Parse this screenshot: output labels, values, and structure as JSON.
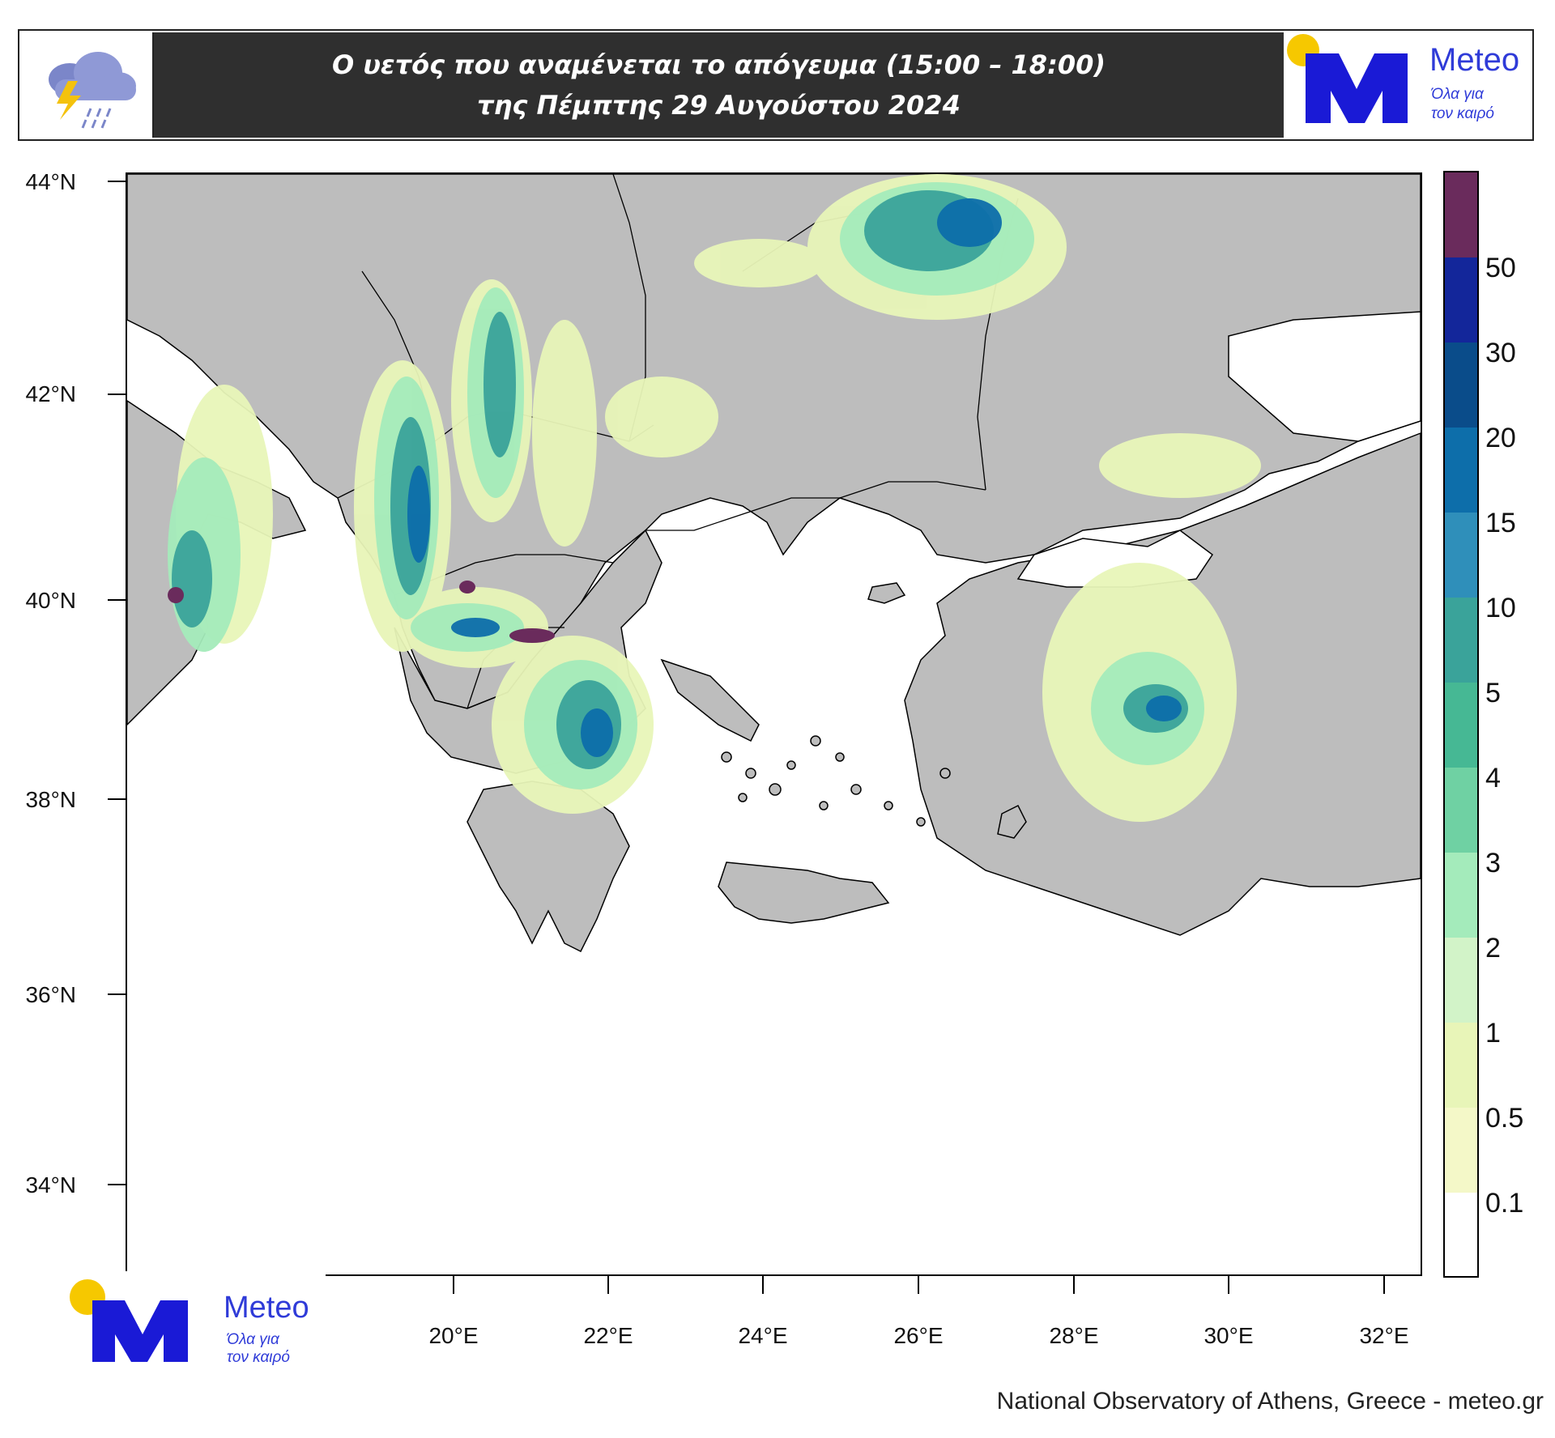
{
  "header": {
    "title_line1": "Ο υετός που αναμένεται το απόγευμα (15:00 – 18:00)",
    "title_line2": "της Πέμπτης 29 Αυγούστου 2024",
    "left_icon": "storm-cloud-icon",
    "logo": {
      "name": "Meteo",
      "tagline_line1": "Όλα για",
      "tagline_line2": "τον καιρό",
      "accent_color": "#1a1ad6",
      "sun_color": "#f6c800"
    }
  },
  "map": {
    "projection": "lat-lon",
    "lat_range": [
      33,
      44
    ],
    "lon_range": [
      18,
      32.5
    ],
    "lat_ticks": [
      "44°N",
      "42°N",
      "40°N",
      "38°N",
      "36°N",
      "34°N"
    ],
    "lon_ticks": [
      "20°E",
      "22°E",
      "24°E",
      "26°E",
      "28°E",
      "30°E",
      "32°E"
    ],
    "land_color": "#bdbdbd",
    "sea_color": "#ffffff"
  },
  "colorbar": {
    "levels": [
      "0.1",
      "0.5",
      "1",
      "2",
      "3",
      "4",
      "5",
      "10",
      "15",
      "20",
      "30",
      "50"
    ],
    "colors": [
      "#ffffff",
      "#f4f8c8",
      "#e8f5b8",
      "#d2f3c8",
      "#a4ebbb",
      "#6fd1a3",
      "#46b894",
      "#3aa39a",
      "#2f8fba",
      "#0d6eaa",
      "#0a4c8a",
      "#13269a",
      "#6a2b5c",
      "#3a0a46"
    ]
  },
  "bottom_logo": {
    "name": "Meteo",
    "tagline_line1": "Όλα για",
    "tagline_line2": "τον καιρό"
  },
  "credit": "National Observatory of Athens, Greece - meteo.gr"
}
